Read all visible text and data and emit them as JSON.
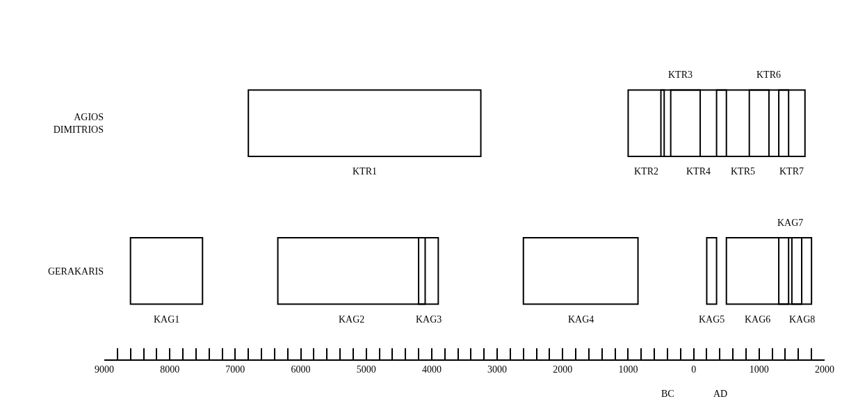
{
  "chart_data": {
    "type": "bar",
    "orientation": "horizontal",
    "stacked": false,
    "legend": false,
    "grid": false,
    "categories": [
      "AGIOS DIMITRIOS",
      "GERAKARIS"
    ],
    "series": [
      {
        "name": "KTR1",
        "color": "#000000",
        "values": [
          3550,
          null
        ],
        "base": [
          -6800,
          null
        ]
      },
      {
        "name": "KTR2",
        "color": "#000000",
        "values": [
          550,
          null
        ],
        "base": [
          -1000,
          null
        ]
      },
      {
        "name": "KTR3",
        "color": "#000000",
        "values": [
          600,
          null
        ],
        "base": [
          -500,
          null
        ]
      },
      {
        "name": "KTR4",
        "color": "#000000",
        "values": [
          850,
          null
        ],
        "base": [
          -350,
          null
        ]
      },
      {
        "name": "KTR5",
        "color": "#000000",
        "values": [
          800,
          null
        ],
        "base": [
          350,
          null
        ]
      },
      {
        "name": "KTR6",
        "color": "#000000",
        "values": [
          600,
          null
        ],
        "base": [
          850,
          null
        ]
      },
      {
        "name": "KTR7",
        "color": "#000000",
        "values": [
          400,
          null
        ],
        "base": [
          1300,
          null
        ]
      },
      {
        "name": "KAG1",
        "color": "#000000",
        "values": [
          null,
          1100
        ],
        "base": [
          null,
          -8600
        ]
      },
      {
        "name": "KAG2",
        "color": "#000000",
        "values": [
          null,
          2250
        ],
        "base": [
          null,
          -6350
        ]
      },
      {
        "name": "KAG3",
        "color": "#000000",
        "values": [
          null,
          300
        ],
        "base": [
          null,
          -4200
        ]
      },
      {
        "name": "KAG4",
        "color": "#000000",
        "values": [
          null,
          1750
        ],
        "base": [
          null,
          -2600
        ]
      },
      {
        "name": "KAG5",
        "color": "#000000",
        "values": [
          null,
          150
        ],
        "base": [
          null,
          200
        ]
      },
      {
        "name": "KAG6",
        "color": "#000000",
        "values": [
          null,
          950
        ],
        "base": [
          null,
          500
        ]
      },
      {
        "name": "KAG7",
        "color": "#000000",
        "values": [
          null,
          350
        ],
        "base": [
          null,
          1300
        ]
      },
      {
        "name": "KAG8",
        "color": "#000000",
        "values": [
          null,
          300
        ],
        "base": [
          null,
          1500
        ]
      }
    ],
    "xlim": [
      -9000,
      2000
    ],
    "xticks": [
      {
        "value": -9000,
        "label": "9000"
      },
      {
        "value": -8800,
        "label": null
      },
      {
        "value": -8600,
        "label": null
      },
      {
        "value": -8400,
        "label": null
      },
      {
        "value": -8200,
        "label": null
      },
      {
        "value": -8000,
        "label": "8000"
      },
      {
        "value": -7800,
        "label": null
      },
      {
        "value": -7600,
        "label": null
      },
      {
        "value": -7400,
        "label": null
      },
      {
        "value": -7200,
        "label": null
      },
      {
        "value": -7000,
        "label": "7000"
      },
      {
        "value": -6800,
        "label": null
      },
      {
        "value": -6600,
        "label": null
      },
      {
        "value": -6400,
        "label": null
      },
      {
        "value": -6200,
        "label": null
      },
      {
        "value": -6000,
        "label": "6000"
      },
      {
        "value": -5800,
        "label": null
      },
      {
        "value": -5600,
        "label": null
      },
      {
        "value": -5400,
        "label": null
      },
      {
        "value": -5200,
        "label": null
      },
      {
        "value": -5000,
        "label": "5000"
      },
      {
        "value": -4800,
        "label": null
      },
      {
        "value": -4600,
        "label": null
      },
      {
        "value": -4400,
        "label": null
      },
      {
        "value": -4200,
        "label": null
      },
      {
        "value": -4000,
        "label": "4000"
      },
      {
        "value": -3800,
        "label": null
      },
      {
        "value": -3600,
        "label": null
      },
      {
        "value": -3400,
        "label": null
      },
      {
        "value": -3200,
        "label": null
      },
      {
        "value": -3000,
        "label": "3000"
      },
      {
        "value": -2800,
        "label": null
      },
      {
        "value": -2600,
        "label": null
      },
      {
        "value": -2400,
        "label": null
      },
      {
        "value": -2200,
        "label": null
      },
      {
        "value": -2000,
        "label": "2000"
      },
      {
        "value": -1800,
        "label": null
      },
      {
        "value": -1600,
        "label": null
      },
      {
        "value": -1400,
        "label": null
      },
      {
        "value": -1200,
        "label": null
      },
      {
        "value": -1000,
        "label": "1000"
      },
      {
        "value": -800,
        "label": null
      },
      {
        "value": -600,
        "label": null
      },
      {
        "value": -400,
        "label": null
      },
      {
        "value": -200,
        "label": null
      },
      0,
      {
        "value": 200,
        "label": null
      },
      {
        "value": 400,
        "label": null
      },
      {
        "value": 600,
        "label": null
      },
      {
        "value": 800,
        "label": null
      },
      1000,
      {
        "value": 1200,
        "label": null
      },
      {
        "value": 1400,
        "label": null
      },
      {
        "value": 1600,
        "label": null
      },
      {
        "value": 1800,
        "label": null
      },
      2000
    ],
    "annotations": [
      "BC",
      "AD"
    ]
  }
}
